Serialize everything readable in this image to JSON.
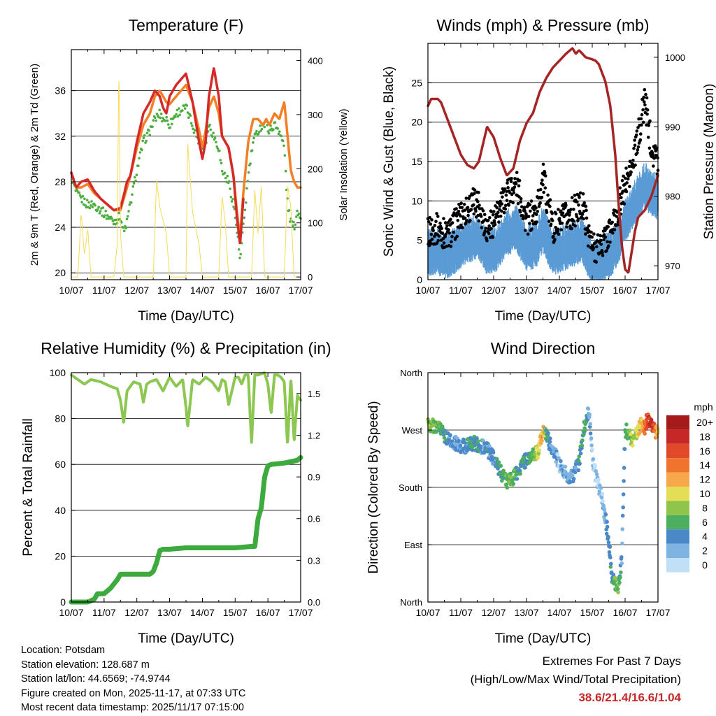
{
  "chart_data": [
    {
      "type": "line",
      "title": "Temperature (F)",
      "xlabel": "Time (Day/UTC)",
      "ylabel": "2m & 9m T (Red, Orange) & 2m Td (Green)",
      "y2label": "Solar Insolation (Yellow)",
      "ylim": [
        19.4,
        39.6
      ],
      "y2lim": [
        -5,
        420
      ],
      "yticks": [
        20,
        24,
        28,
        32,
        36
      ],
      "y2ticks": [
        0,
        100,
        200,
        300,
        400
      ],
      "xlim": [
        0,
        7
      ],
      "xticks": [
        "10/07",
        "11/07",
        "12/07",
        "13/07",
        "14/07",
        "15/07",
        "16/07",
        "17/07"
      ],
      "series": [
        {
          "name": "2m Td",
          "color": "#4caf3f",
          "style": "dots",
          "x": [
            0,
            0.15,
            0.3,
            0.5,
            0.7,
            0.9,
            1.1,
            1.3,
            1.5,
            1.6,
            1.7,
            1.8,
            2.0,
            2.2,
            2.4,
            2.55,
            2.7,
            2.8,
            2.9,
            3.0,
            3.2,
            3.35,
            3.5,
            3.7,
            3.9,
            4.0,
            4.1,
            4.2,
            4.35,
            4.5,
            4.6,
            4.8,
            4.95,
            5.05,
            5.15,
            5.25,
            5.4,
            5.55,
            5.7,
            5.85,
            5.95,
            6.05,
            6.2,
            6.35,
            6.5,
            6.6,
            6.7,
            6.8,
            6.9,
            7.0
          ],
          "y": [
            28.5,
            27.0,
            26.5,
            26.0,
            26.0,
            25.5,
            25.0,
            24.5,
            25.0,
            23.5,
            24.5,
            26.0,
            29.0,
            31.5,
            32.5,
            33.5,
            34.0,
            33.5,
            33.5,
            33.0,
            34.0,
            34.3,
            34.5,
            33.0,
            31.5,
            31.0,
            31.5,
            33.0,
            32.0,
            31.0,
            29.0,
            28.0,
            26.0,
            24.0,
            21.0,
            24.0,
            28.5,
            31.5,
            32.5,
            33.0,
            33.0,
            32.5,
            33.0,
            32.5,
            31.0,
            26.0,
            24.5,
            24.0,
            25.5,
            25.0
          ]
        },
        {
          "name": "9m T",
          "color": "#f47f26",
          "style": "line",
          "x": [
            0,
            0.15,
            0.3,
            0.5,
            0.7,
            0.9,
            1.1,
            1.3,
            1.5,
            1.6,
            1.7,
            1.8,
            2.0,
            2.2,
            2.4,
            2.55,
            2.7,
            2.8,
            2.9,
            3.0,
            3.2,
            3.35,
            3.5,
            3.7,
            3.9,
            4.0,
            4.1,
            4.2,
            4.35,
            4.5,
            4.6,
            4.8,
            4.95,
            5.05,
            5.15,
            5.25,
            5.4,
            5.55,
            5.7,
            5.85,
            5.95,
            6.05,
            6.2,
            6.35,
            6.5,
            6.6,
            6.7,
            6.8,
            6.9,
            7.0
          ],
          "y": [
            28.8,
            27.5,
            27.5,
            27.8,
            27.0,
            26.5,
            26.0,
            25.5,
            25.5,
            26.5,
            27.5,
            28.5,
            31.0,
            33.0,
            34.0,
            35.5,
            36.0,
            35.5,
            35.0,
            34.8,
            35.5,
            36.0,
            36.5,
            35.0,
            32.5,
            31.0,
            32.5,
            34.5,
            35.5,
            34.0,
            32.0,
            31.0,
            28.5,
            25.5,
            23.0,
            27.0,
            31.5,
            33.5,
            33.5,
            33.0,
            33.5,
            33.0,
            34.0,
            33.5,
            35.0,
            32.0,
            29.0,
            28.0,
            27.5,
            27.5
          ]
        },
        {
          "name": "2m T",
          "color": "#d42a28",
          "style": "line",
          "x": [
            0,
            0.15,
            0.3,
            0.5,
            0.7,
            0.9,
            1.1,
            1.3,
            1.5,
            1.6,
            1.7,
            1.8,
            2.0,
            2.2,
            2.4,
            2.55,
            2.7,
            2.8,
            2.9,
            3.0,
            3.2,
            3.35,
            3.5,
            3.7,
            3.9,
            4.0,
            4.1,
            4.2,
            4.35,
            4.5,
            4.6,
            4.8,
            4.95,
            5.05,
            5.15,
            5.25
          ],
          "y": [
            28.8,
            27.5,
            28.0,
            28.2,
            27.2,
            26.5,
            26.0,
            25.5,
            25.7,
            26.8,
            28.0,
            28.5,
            31.5,
            34.0,
            35.0,
            36.0,
            35.5,
            34.5,
            34.0,
            35.5,
            36.5,
            37.0,
            37.5,
            35.0,
            31.5,
            30.0,
            31.5,
            35.5,
            38.0,
            35.5,
            32.0,
            31.0,
            28.5,
            25.0,
            22.5,
            26.5
          ]
        },
        {
          "name": "Solar Insolation",
          "color": "#f5dc56",
          "style": "line",
          "axis": "y2",
          "x": [
            0,
            0.2,
            0.3,
            0.4,
            0.5,
            0.6,
            1.0,
            1.3,
            1.4,
            1.45,
            1.5,
            1.6,
            2.0,
            2.5,
            2.6,
            2.7,
            2.9,
            3.0,
            3.5,
            3.55,
            3.7,
            3.9,
            4.0,
            4.5,
            4.6,
            4.7,
            4.8,
            5.0,
            5.5,
            5.6,
            5.7,
            5.8,
            5.9,
            6.0,
            6.5,
            6.6,
            6.7,
            6.8,
            7.0
          ],
          "y": [
            0,
            0,
            120,
            40,
            90,
            0,
            0,
            0,
            60,
            400,
            80,
            0,
            0,
            0,
            180,
            130,
            80,
            0,
            0,
            250,
            120,
            60,
            0,
            0,
            150,
            100,
            0,
            0,
            0,
            160,
            80,
            170,
            0,
            0,
            0,
            170,
            130,
            0,
            0
          ]
        }
      ]
    },
    {
      "type": "line",
      "title": "Winds (mph) & Pressure (mb)",
      "xlabel": "Time (Day/UTC)",
      "ylabel": "Sonic Wind & Gust (Blue, Black)",
      "y2label": "Station Pressure (Maroon)",
      "ylim": [
        0,
        30
      ],
      "y2lim": [
        968,
        1002
      ],
      "yticks": [
        0,
        5,
        10,
        15,
        20,
        25
      ],
      "y2ticks": [
        970,
        980,
        990,
        1000
      ],
      "xlim": [
        0,
        7
      ],
      "xticks": [
        "10/07",
        "11/07",
        "12/07",
        "13/07",
        "14/07",
        "15/07",
        "16/07",
        "17/07"
      ],
      "series": [
        {
          "name": "Sonic Wind",
          "color": "#5a9bd5",
          "style": "band",
          "x": [
            0,
            0.3,
            0.6,
            0.9,
            1.2,
            1.5,
            1.8,
            2.1,
            2.4,
            2.7,
            3.0,
            3.3,
            3.5,
            3.8,
            4.1,
            4.4,
            4.7,
            5.0,
            5.3,
            5.6,
            5.8,
            6.0,
            6.2,
            6.4,
            6.6,
            6.8,
            7.0
          ],
          "y": [
            3.5,
            3.5,
            3.0,
            4.0,
            5.0,
            5.5,
            3.5,
            4.0,
            6.0,
            6.5,
            4.0,
            4.5,
            6.5,
            3.5,
            4.0,
            4.5,
            5.0,
            2.0,
            2.5,
            3.5,
            5.0,
            7.5,
            9.0,
            10.5,
            12.0,
            11.0,
            10.5
          ]
        },
        {
          "name": "Gust",
          "color": "#000000",
          "style": "dots",
          "x": [
            0,
            0.3,
            0.6,
            0.9,
            1.2,
            1.5,
            1.8,
            2.1,
            2.4,
            2.7,
            3.0,
            3.3,
            3.5,
            3.8,
            4.1,
            4.4,
            4.7,
            5.0,
            5.3,
            5.6,
            5.8,
            6.0,
            6.2,
            6.4,
            6.6,
            6.8,
            7.0
          ],
          "y": [
            6.0,
            6.5,
            5.5,
            7.5,
            9.0,
            10.0,
            6.5,
            8.0,
            11.0,
            12.0,
            7.5,
            8.5,
            13.0,
            6.5,
            7.5,
            8.5,
            9.5,
            4.0,
            4.5,
            6.5,
            9.0,
            12.0,
            14.0,
            18.0,
            23.0,
            17.0,
            15.0
          ]
        },
        {
          "name": "Station Pressure",
          "color": "#a52424",
          "style": "line",
          "axis": "y2",
          "x": [
            0,
            0.1,
            0.3,
            0.4,
            0.6,
            0.8,
            1.0,
            1.2,
            1.4,
            1.55,
            1.7,
            1.8,
            2.0,
            2.2,
            2.4,
            2.6,
            2.8,
            3.0,
            3.2,
            3.4,
            3.6,
            3.8,
            4.0,
            4.2,
            4.4,
            4.5,
            4.6,
            4.8,
            5.0,
            5.1,
            5.2,
            5.4,
            5.55,
            5.7,
            5.8,
            5.9,
            6.0,
            6.1,
            6.2,
            6.3,
            6.4,
            6.6,
            6.8,
            7.0
          ],
          "y": [
            993,
            994,
            994,
            993.5,
            991,
            988.5,
            986,
            984.5,
            984,
            985,
            988,
            990,
            988.5,
            985.5,
            983,
            984,
            988,
            990.5,
            992,
            995,
            997,
            998.5,
            999.5,
            1000.5,
            1001.3,
            1000.5,
            1001,
            1000,
            999.7,
            999.5,
            999,
            996.5,
            993,
            986,
            979,
            973,
            969.5,
            969,
            972,
            975,
            977,
            978,
            980,
            983
          ]
        }
      ]
    },
    {
      "type": "line",
      "title": "Relative Humidity (%) & Precipitation (in)",
      "xlabel": "Time (Day/UTC)",
      "ylabel": "Percent & Total Rainfall",
      "ylim": [
        0,
        100
      ],
      "y2lim": [
        0,
        1.65
      ],
      "yticks": [
        0,
        20,
        40,
        60,
        80,
        100
      ],
      "y2ticks": [
        0.0,
        0.3,
        0.6,
        0.9,
        1.2,
        1.5
      ],
      "y2ticklabels": [
        "0.0",
        "0.3",
        "0.6",
        "0.9",
        "1.2",
        "1.5"
      ],
      "xlim": [
        0,
        7
      ],
      "xticks": [
        "10/07",
        "11/07",
        "12/07",
        "13/07",
        "14/07",
        "15/07",
        "16/07",
        "17/07"
      ],
      "series": [
        {
          "name": "Relative Humidity",
          "color": "#8cc751",
          "style": "line",
          "x": [
            0,
            0.2,
            0.4,
            0.6,
            0.9,
            1.2,
            1.4,
            1.5,
            1.6,
            1.7,
            1.9,
            2.1,
            2.2,
            2.3,
            2.4,
            2.6,
            2.8,
            3.0,
            3.2,
            3.4,
            3.5,
            3.55,
            3.7,
            3.9,
            4.1,
            4.3,
            4.5,
            4.6,
            4.7,
            4.8,
            5.0,
            5.1,
            5.2,
            5.3,
            5.4,
            5.5,
            5.6,
            5.7,
            5.9,
            6.0,
            6.1,
            6.2,
            6.3,
            6.4,
            6.5,
            6.6,
            6.7,
            6.8,
            6.9,
            7.0
          ],
          "y": [
            99,
            97,
            95,
            97,
            96,
            94,
            93,
            88,
            78,
            92,
            96,
            95,
            87,
            95,
            96,
            97,
            92,
            98,
            94,
            97,
            85,
            76,
            97,
            95,
            98,
            96,
            92,
            97,
            96,
            86,
            98,
            98,
            95,
            99,
            99,
            69,
            99,
            99,
            100,
            95,
            82,
            99,
            99,
            98,
            96,
            68,
            98,
            70,
            90,
            88
          ]
        },
        {
          "name": "Total Precipitation",
          "color": "#3caa3c",
          "style": "line",
          "axis": "y2",
          "x": [
            0,
            0.5,
            0.7,
            0.8,
            1.0,
            1.2,
            1.4,
            1.5,
            1.7,
            1.8,
            2.0,
            2.2,
            2.4,
            2.5,
            2.6,
            2.7,
            2.8,
            3.0,
            3.5,
            4.0,
            4.5,
            5.0,
            5.5,
            5.6,
            5.7,
            5.8,
            5.9,
            6.0,
            6.1,
            6.5,
            6.7,
            6.9,
            7.0
          ],
          "y": [
            0,
            0,
            0.02,
            0.06,
            0.06,
            0.1,
            0.16,
            0.2,
            0.2,
            0.2,
            0.2,
            0.2,
            0.2,
            0.22,
            0.28,
            0.37,
            0.38,
            0.38,
            0.39,
            0.39,
            0.39,
            0.39,
            0.4,
            0.4,
            0.6,
            0.68,
            0.9,
            0.98,
            0.99,
            1.0,
            1.01,
            1.02,
            1.04
          ]
        }
      ]
    },
    {
      "type": "scatter",
      "title": "Wind Direction",
      "xlabel": "Time (Day/UTC)",
      "ylabel": "Direction (Colored By Speed)",
      "ylim": [
        0,
        360
      ],
      "yticks": [
        0,
        90,
        180,
        270,
        360
      ],
      "yticklabels": [
        "North",
        "East",
        "South",
        "West",
        "North"
      ],
      "xlim": [
        0,
        7
      ],
      "xticks": [
        "10/07",
        "11/07",
        "12/07",
        "13/07",
        "14/07",
        "15/07",
        "16/07",
        "17/07"
      ],
      "x": [
        0,
        0.2,
        0.4,
        0.6,
        0.8,
        1.0,
        1.2,
        1.4,
        1.6,
        1.8,
        2.0,
        2.2,
        2.4,
        2.6,
        2.8,
        3.0,
        3.2,
        3.35,
        3.5,
        3.6,
        3.8,
        4.0,
        4.2,
        4.4,
        4.5,
        4.6,
        4.7,
        4.8,
        4.9,
        5.0,
        5.1,
        5.2,
        5.3,
        5.4,
        5.5,
        5.6,
        5.7,
        5.8,
        5.9,
        6.0,
        6.1,
        6.2,
        6.3,
        6.4,
        6.5,
        6.6,
        6.7,
        6.8,
        6.9,
        7.0
      ],
      "y": [
        280,
        275,
        270,
        255,
        250,
        245,
        245,
        250,
        245,
        240,
        225,
        205,
        190,
        195,
        210,
        225,
        230,
        235,
        265,
        260,
        240,
        215,
        200,
        195,
        210,
        220,
        260,
        285,
        300,
        230,
        200,
        180,
        165,
        130,
        100,
        40,
        30,
        20,
        70,
        270,
        265,
        255,
        260,
        270,
        280,
        275,
        290,
        280,
        270,
        265
      ],
      "speed": [
        8,
        7,
        6,
        4,
        3,
        3,
        4,
        5,
        4,
        4,
        3,
        5,
        7,
        6,
        5,
        5,
        6,
        10,
        12,
        5,
        3,
        2,
        2,
        3,
        3,
        4,
        5,
        6,
        3,
        1,
        1,
        1,
        2,
        3,
        4,
        5,
        6,
        7,
        3,
        5,
        7,
        8,
        9,
        10,
        12,
        14,
        16,
        18,
        15,
        10
      ],
      "colorbar": {
        "title": "mph",
        "labels": [
          "20+",
          "18",
          "16",
          "14",
          "12",
          "10",
          "8",
          "6",
          "4",
          "2",
          "0"
        ],
        "colors": [
          "#a51a1a",
          "#c62828",
          "#e04a2a",
          "#f0742e",
          "#f6a84a",
          "#e4de56",
          "#8ec54a",
          "#4caf5f",
          "#4a88c8",
          "#7fb4e2",
          "#bfe0f6"
        ]
      }
    }
  ],
  "info": {
    "location": "Location: Potsdam",
    "elevation": "Station elevation: 128.687 m",
    "latlon": "Station lat/lon: 44.6569; -74.9744",
    "created": "Figure created on Mon, 2025-11-17, at 07:33 UTC",
    "recent": "Most recent data timestamp: 2025/11/17 07:15:00"
  },
  "extremes": {
    "title": "Extremes For Past 7 Days",
    "subtitle": "(High/Low/Max Wind/Total Precipitation)",
    "values": "38.6/21.4/16.6/1.04"
  }
}
